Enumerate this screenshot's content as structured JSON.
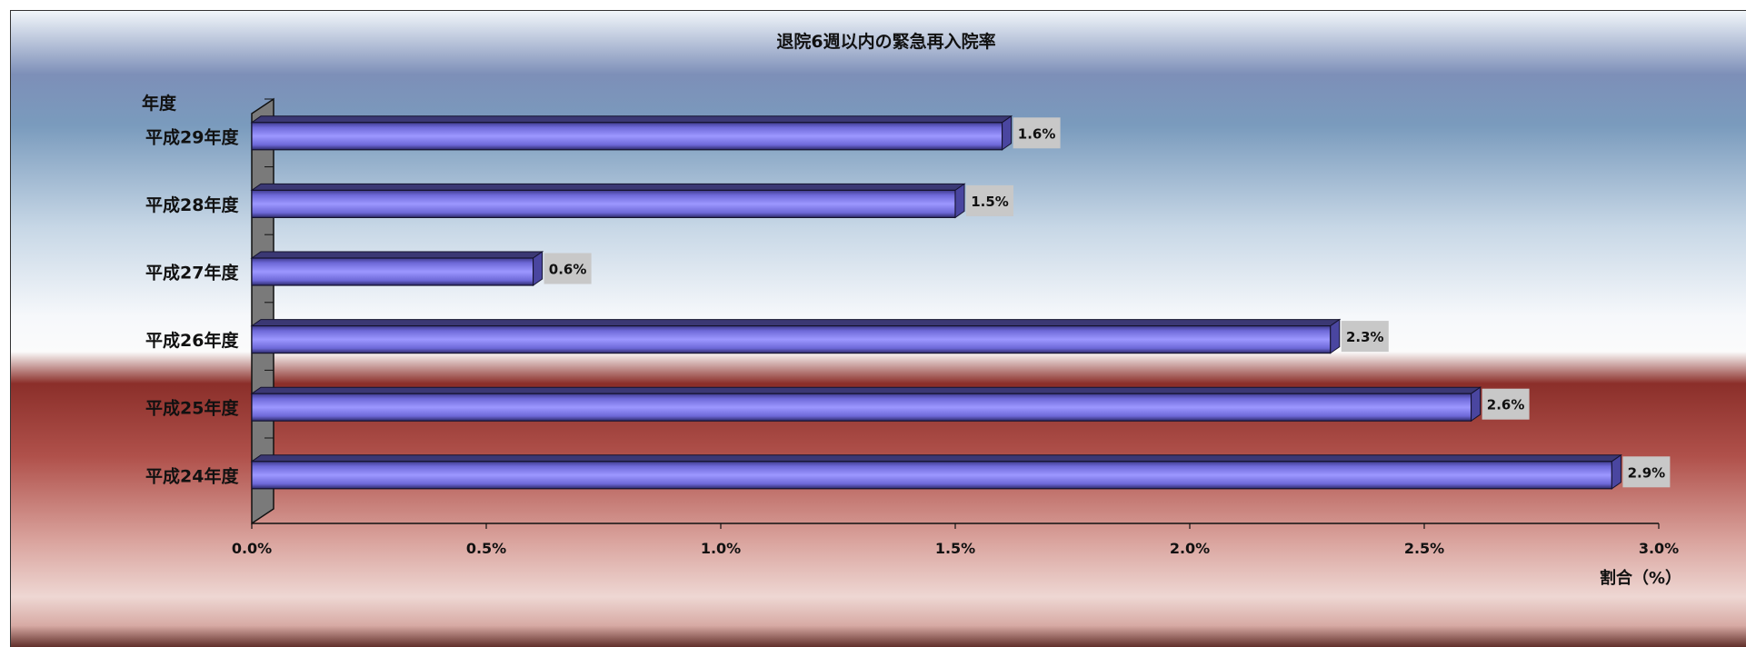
{
  "chart_data": {
    "type": "bar",
    "orientation": "horizontal",
    "title": "退院6週以内の緊急再入院率",
    "ylabel": "年度",
    "xlabel": "割合（%）",
    "categories": [
      "平成29年度",
      "平成28年度",
      "平成27年度",
      "平成26年度",
      "平成25年度",
      "平成24年度"
    ],
    "values": [
      1.6,
      1.5,
      0.6,
      2.3,
      2.6,
      2.9
    ],
    "data_labels": [
      "1.6%",
      "1.5%",
      "0.6%",
      "2.3%",
      "2.6%",
      "2.9%"
    ],
    "xlim": [
      0,
      3.0
    ],
    "xticks": [
      0,
      0.5,
      1.0,
      1.5,
      2.0,
      2.5,
      3.0
    ],
    "xtick_labels": [
      "0.0%",
      "0.5%",
      "1.0%",
      "1.5%",
      "2.0%",
      "2.5%",
      "3.0%"
    ],
    "bar_color": "#8b86f2",
    "grid": false,
    "legend": "none"
  }
}
